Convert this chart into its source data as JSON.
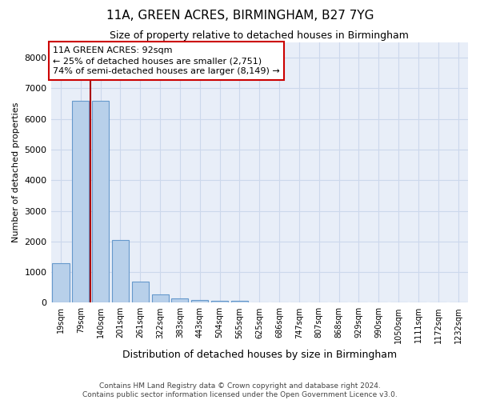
{
  "title": "11A, GREEN ACRES, BIRMINGHAM, B27 7YG",
  "subtitle": "Size of property relative to detached houses in Birmingham",
  "xlabel": "Distribution of detached houses by size in Birmingham",
  "ylabel": "Number of detached properties",
  "bin_labels": [
    "19sqm",
    "79sqm",
    "140sqm",
    "201sqm",
    "261sqm",
    "322sqm",
    "383sqm",
    "443sqm",
    "504sqm",
    "565sqm",
    "625sqm",
    "686sqm",
    "747sqm",
    "807sqm",
    "868sqm",
    "929sqm",
    "990sqm",
    "1050sqm",
    "1111sqm",
    "1172sqm",
    "1232sqm"
  ],
  "bar_values": [
    1300,
    6600,
    6600,
    2050,
    700,
    280,
    150,
    90,
    60,
    60,
    10,
    0,
    0,
    0,
    0,
    0,
    0,
    0,
    0,
    0,
    0
  ],
  "bar_color": "#b8d0ea",
  "bar_edge_color": "#6699cc",
  "ylim": [
    0,
    8500
  ],
  "yticks": [
    0,
    1000,
    2000,
    3000,
    4000,
    5000,
    6000,
    7000,
    8000
  ],
  "red_line_x": 1.5,
  "annotation_title": "11A GREEN ACRES: 92sqm",
  "annotation_line1": "← 25% of detached houses are smaller (2,751)",
  "annotation_line2": "74% of semi-detached houses are larger (8,149) →",
  "red_color": "#aa0000",
  "annotation_box_color": "#ffffff",
  "annotation_box_edge": "#cc0000",
  "grid_color": "#ccd8ec",
  "background_color": "#e8eef8",
  "footnote1": "Contains HM Land Registry data © Crown copyright and database right 2024.",
  "footnote2": "Contains public sector information licensed under the Open Government Licence v3.0."
}
